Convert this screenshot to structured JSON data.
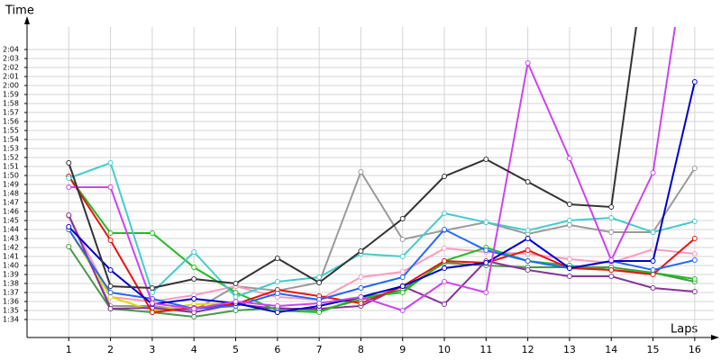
{
  "chart_data": {
    "type": "line",
    "y_label": "Time",
    "x_label": "Laps",
    "x": [
      1,
      2,
      3,
      4,
      5,
      6,
      7,
      8,
      9,
      10,
      11,
      12,
      13,
      14,
      15,
      16
    ],
    "xlim": [
      0,
      16.5
    ],
    "xticks": [
      1,
      2,
      3,
      4,
      5,
      6,
      7,
      8,
      9,
      10,
      11,
      12,
      13,
      14,
      15,
      16
    ],
    "ylim": [
      92,
      126.5
    ],
    "yticks": [
      {
        "value": 94,
        "label": "1:34"
      },
      {
        "value": 95,
        "label": "1:35"
      },
      {
        "value": 96,
        "label": "1:36"
      },
      {
        "value": 97,
        "label": "1:37"
      },
      {
        "value": 98,
        "label": "1:38"
      },
      {
        "value": 99,
        "label": "1:39"
      },
      {
        "value": 100,
        "label": "1:40"
      },
      {
        "value": 101,
        "label": "1:41"
      },
      {
        "value": 102,
        "label": "1:42"
      },
      {
        "value": 103,
        "label": "1:43"
      },
      {
        "value": 104,
        "label": "1:44"
      },
      {
        "value": 105,
        "label": "1:45"
      },
      {
        "value": 106,
        "label": "1:46"
      },
      {
        "value": 107,
        "label": "1:47"
      },
      {
        "value": 108,
        "label": "1:48"
      },
      {
        "value": 109,
        "label": "1:49"
      },
      {
        "value": 110,
        "label": "1:50"
      },
      {
        "value": 111,
        "label": "1:51"
      },
      {
        "value": 112,
        "label": "1:52"
      },
      {
        "value": 113,
        "label": "1:53"
      },
      {
        "value": 114,
        "label": "1:54"
      },
      {
        "value": 115,
        "label": "1:55"
      },
      {
        "value": 116,
        "label": "1:56"
      },
      {
        "value": 117,
        "label": "1:57"
      },
      {
        "value": 118,
        "label": "1:58"
      },
      {
        "value": 119,
        "label": "1:59"
      },
      {
        "value": 120,
        "label": "2:00"
      },
      {
        "value": 121,
        "label": "2:01"
      },
      {
        "value": 122,
        "label": "2:02"
      },
      {
        "value": 123,
        "label": "2:03"
      },
      {
        "value": 124,
        "label": "2:04"
      }
    ],
    "grid": true,
    "series": [
      {
        "color": "#9a9a9a",
        "values": [
          105.5,
          95.5,
          95.5,
          95.0,
          97.7,
          97.2,
          98.1,
          110.4,
          102.9,
          103.9,
          104.8,
          103.5,
          104.5,
          103.7,
          103.7,
          110.8
        ]
      },
      {
        "color": "#ff99bb",
        "values": [
          105.5,
          96.5,
          96.0,
          96.7,
          97.7,
          96.5,
          96.2,
          98.7,
          99.3,
          101.9,
          101.5,
          101.3,
          100.7,
          100.3,
          101.8,
          101.3
        ]
      },
      {
        "color": "#dddd00",
        "values": [
          104.0,
          96.5,
          95.0,
          95.7,
          95.8,
          null,
          null,
          null,
          null,
          null,
          null,
          null,
          null,
          null,
          null,
          null
        ]
      },
      {
        "color": "#449944",
        "values": [
          102.1,
          95.2,
          94.8,
          94.3,
          95.0,
          95.3,
          95.0,
          96.2,
          97.3,
          100.3,
          100.0,
          99.8,
          99.8,
          99.8,
          99.2,
          98.2
        ]
      },
      {
        "color": "#883399",
        "values": [
          105.6,
          95.2,
          95.3,
          94.8,
          95.7,
          95.2,
          95.2,
          95.5,
          97.7,
          95.7,
          100.5,
          99.5,
          98.8,
          98.8,
          97.5,
          97.1
        ]
      },
      {
        "color": "#22bb22",
        "values": [
          109.9,
          103.6,
          103.6,
          99.8,
          97.0,
          95.0,
          94.8,
          96.5,
          97.0,
          100.5,
          102.0,
          100.5,
          100.0,
          99.5,
          99.2,
          98.5
        ]
      },
      {
        "color": "#ee1111",
        "values": [
          109.9,
          102.8,
          94.8,
          95.3,
          95.7,
          97.3,
          96.6,
          95.8,
          97.7,
          100.5,
          100.3,
          101.7,
          99.7,
          99.5,
          99.0,
          103.0
        ]
      },
      {
        "color": "#44cccc",
        "values": [
          109.7,
          111.4,
          97.0,
          101.5,
          96.5,
          98.2,
          98.7,
          101.3,
          101.0,
          105.8,
          104.8,
          103.9,
          105.0,
          105.3,
          103.7,
          104.9
        ]
      },
      {
        "color": "#2266ff",
        "values": [
          104.0,
          97.0,
          96.3,
          95.2,
          95.5,
          96.9,
          96.2,
          97.5,
          98.7,
          104.0,
          101.7,
          100.5,
          99.7,
          100.5,
          99.5,
          100.6
        ]
      },
      {
        "color": "#0000cc",
        "values": [
          104.3,
          99.5,
          95.7,
          96.3,
          95.8,
          94.8,
          95.5,
          96.5,
          97.7,
          99.7,
          100.3,
          103.0,
          99.7,
          100.5,
          100.5,
          120.4
        ]
      },
      {
        "color": "#cc44ee",
        "values": [
          108.7,
          108.7,
          95.8,
          95.2,
          96.0,
          95.5,
          95.8,
          96.5,
          95.0,
          98.2,
          97.0,
          122.5,
          111.9,
          100.6,
          110.3,
          141
        ]
      },
      {
        "color": "#333333",
        "values": [
          111.4,
          97.7,
          97.5,
          98.5,
          98.0,
          100.8,
          98.1,
          101.6,
          105.2,
          109.9,
          111.8,
          109.3,
          106.8,
          106.5,
          140,
          null
        ]
      }
    ]
  }
}
